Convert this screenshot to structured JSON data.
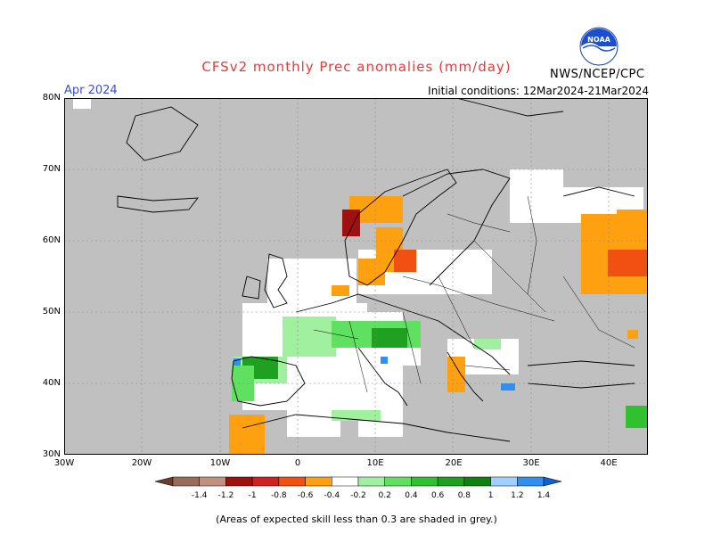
{
  "header": {
    "title": "CFSv2 monthly Prec anomalies (mm/day)",
    "month": "Apr 2024",
    "initial_conditions": "Initial conditions: 12Mar2024-21Mar2024",
    "agency": "NWS/NCEP/CPC",
    "logo_text": "NOAA"
  },
  "axes": {
    "lat_labels": [
      "80N",
      "70N",
      "60N",
      "50N",
      "40N",
      "30N"
    ],
    "lon_labels": [
      "30W",
      "20W",
      "10W",
      "0",
      "10E",
      "20E",
      "30E",
      "40E"
    ]
  },
  "legend": {
    "tick_labels": [
      "-1.4",
      "-1.2",
      "-1",
      "-0.8",
      "-0.6",
      "-0.4",
      "-0.2",
      "0.2",
      "0.4",
      "0.6",
      "0.8",
      "1",
      "1.2",
      "1.4"
    ],
    "colors": [
      "#6b3b2c",
      "#9a6a5a",
      "#c09080",
      "#a01010",
      "#d02020",
      "#f05010",
      "#ffa010",
      "#ffffff",
      "#a0f0a0",
      "#60e060",
      "#30c030",
      "#20a020",
      "#108010",
      "#a0d0ff",
      "#3090f0",
      "#1060d0"
    ]
  },
  "footnote": "(Areas of expected skill less than 0.3 are shaded in grey.)",
  "map": {
    "grey_color": "#c0c0c0",
    "ocean_color": "#ffffff"
  }
}
